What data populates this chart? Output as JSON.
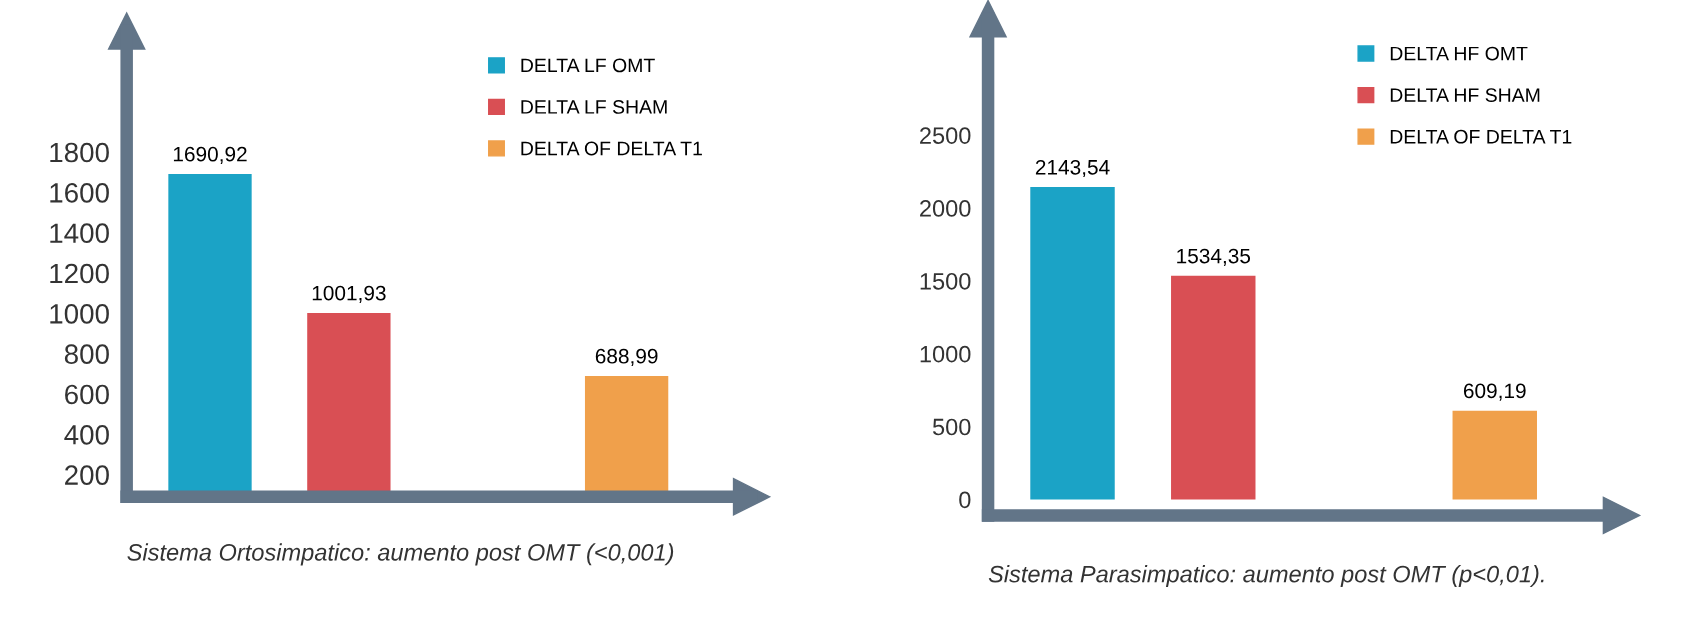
{
  "chart_data": [
    {
      "type": "bar",
      "categories": [
        null,
        null,
        null,
        null
      ],
      "ylim": [
        90,
        2400
      ],
      "yticks": [
        200,
        400,
        600,
        800,
        1000,
        1200,
        1400,
        1600,
        1800
      ],
      "legend": "top right",
      "grid": false,
      "series": [
        {
          "name": "DELTA LF OMT",
          "color": "#1ba3c6",
          "values": [
            1690.92,
            null,
            null,
            null
          ],
          "value_labels": [
            "1690,92",
            null,
            null,
            null
          ]
        },
        {
          "name": "DELTA LF SHAM",
          "color": "#d94f54",
          "values": [
            null,
            1001.93,
            null,
            null
          ],
          "value_labels": [
            null,
            "1001,93",
            null,
            null
          ]
        },
        {
          "name": "DELTA OF DELTA T1",
          "color": "#f0a04b",
          "values": [
            null,
            null,
            null,
            688.99
          ],
          "value_labels": [
            null,
            null,
            null,
            "688,99"
          ]
        }
      ],
      "annotations": [
        "Sistema Ortosimpatico: aumento post OMT (<0,001)"
      ]
    },
    {
      "type": "bar",
      "categories": [
        null,
        null,
        null,
        null
      ],
      "ylim": [
        -110,
        3300
      ],
      "yticks": [
        0,
        500,
        1000,
        1500,
        2000,
        2500
      ],
      "legend": "top right",
      "grid": false,
      "series": [
        {
          "name": "DELTA HF OMT",
          "color": "#1ba3c6",
          "values": [
            2143.54,
            null,
            null,
            null
          ],
          "value_labels": [
            "2143,54",
            null,
            null,
            null
          ]
        },
        {
          "name": "DELTA HF SHAM",
          "color": "#d94f54",
          "values": [
            null,
            1534.35,
            null,
            null
          ],
          "value_labels": [
            null,
            "1534,35",
            null,
            null
          ]
        },
        {
          "name": "DELTA OF DELTA T1",
          "color": "#f0a04b",
          "values": [
            null,
            null,
            null,
            609.19
          ],
          "value_labels": [
            null,
            null,
            null,
            "609,19"
          ]
        }
      ],
      "annotations": [
        "Sistema Parasimpatico: aumento post OMT (p<0,01)."
      ]
    }
  ]
}
